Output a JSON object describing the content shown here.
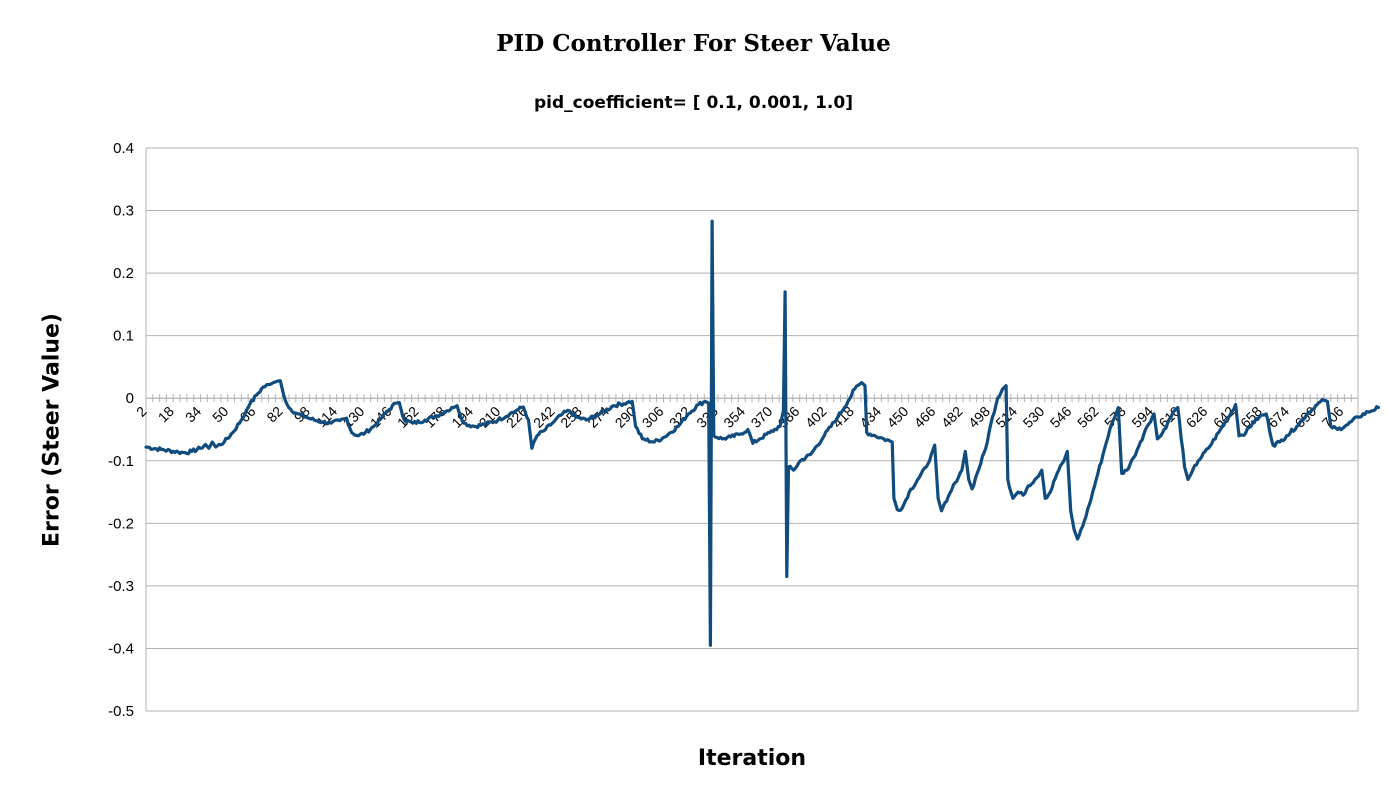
{
  "chart_data": {
    "type": "line",
    "title": "PID Controller For Steer Value",
    "subtitle": "pid_coefficient= [ 0.1, 0.001, 1.0]",
    "xlabel": "Iteration",
    "ylabel": "Error (Steer Value)",
    "ylim": [
      -0.5,
      0.4
    ],
    "yticks": [
      0.4,
      0.3,
      0.2,
      0.1,
      0,
      -0.1,
      -0.2,
      -0.3,
      -0.4,
      -0.5
    ],
    "xlim": [
      1,
      714
    ],
    "x_tick_labels": [
      2,
      18,
      34,
      50,
      66,
      82,
      98,
      114,
      130,
      146,
      162,
      178,
      194,
      210,
      226,
      242,
      258,
      274,
      290,
      306,
      322,
      338,
      354,
      370,
      386,
      402,
      418,
      434,
      450,
      466,
      482,
      498,
      514,
      530,
      546,
      562,
      578,
      594,
      610,
      626,
      642,
      658,
      674,
      690,
      706
    ],
    "grid": true,
    "line_color": "#114c7e",
    "series": [
      {
        "values_keypoints": [
          [
            1,
            -0.078
          ],
          [
            10,
            -0.082
          ],
          [
            20,
            -0.086
          ],
          [
            24,
            -0.087
          ],
          [
            28,
            -0.085
          ],
          [
            33,
            -0.08
          ],
          [
            36,
            -0.074
          ],
          [
            38,
            -0.08
          ],
          [
            40,
            -0.07
          ],
          [
            42,
            -0.078
          ],
          [
            47,
            -0.07
          ],
          [
            52,
            -0.055
          ],
          [
            57,
            -0.035
          ],
          [
            60,
            -0.02
          ],
          [
            62,
            -0.01
          ],
          [
            66,
            0.005
          ],
          [
            70,
            0.018
          ],
          [
            74,
            0.022
          ],
          [
            76,
            0.025
          ],
          [
            78,
            0.027
          ],
          [
            80,
            0.028
          ],
          [
            82,
            0.005
          ],
          [
            85,
            -0.015
          ],
          [
            90,
            -0.025
          ],
          [
            95,
            -0.03
          ],
          [
            100,
            -0.035
          ],
          [
            105,
            -0.038
          ],
          [
            110,
            -0.04
          ],
          [
            115,
            -0.036
          ],
          [
            119,
            -0.032
          ],
          [
            122,
            -0.055
          ],
          [
            126,
            -0.06
          ],
          [
            130,
            -0.055
          ],
          [
            135,
            -0.045
          ],
          [
            140,
            -0.03
          ],
          [
            144,
            -0.018
          ],
          [
            148,
            -0.008
          ],
          [
            150,
            -0.007
          ],
          [
            153,
            -0.035
          ],
          [
            158,
            -0.04
          ],
          [
            165,
            -0.035
          ],
          [
            172,
            -0.028
          ],
          [
            178,
            -0.02
          ],
          [
            182,
            -0.015
          ],
          [
            184,
            -0.012
          ],
          [
            188,
            -0.04
          ],
          [
            194,
            -0.045
          ],
          [
            200,
            -0.042
          ],
          [
            208,
            -0.035
          ],
          [
            215,
            -0.025
          ],
          [
            220,
            -0.018
          ],
          [
            223,
            -0.014
          ],
          [
            226,
            -0.035
          ],
          [
            228,
            -0.08
          ],
          [
            231,
            -0.06
          ],
          [
            236,
            -0.05
          ],
          [
            240,
            -0.04
          ],
          [
            246,
            -0.025
          ],
          [
            250,
            -0.02
          ],
          [
            254,
            -0.03
          ],
          [
            260,
            -0.035
          ],
          [
            268,
            -0.025
          ],
          [
            276,
            -0.012
          ],
          [
            284,
            -0.007
          ],
          [
            287,
            -0.005
          ],
          [
            289,
            -0.045
          ],
          [
            293,
            -0.065
          ],
          [
            300,
            -0.07
          ],
          [
            306,
            -0.062
          ],
          [
            314,
            -0.045
          ],
          [
            320,
            -0.025
          ],
          [
            326,
            -0.01
          ],
          [
            330,
            -0.005
          ],
          [
            332,
            -0.008
          ],
          [
            333,
            -0.395
          ],
          [
            334,
            0.283
          ],
          [
            335,
            -0.06
          ],
          [
            340,
            -0.065
          ],
          [
            345,
            -0.062
          ],
          [
            350,
            -0.058
          ],
          [
            355,
            -0.05
          ],
          [
            358,
            -0.072
          ],
          [
            362,
            -0.065
          ],
          [
            368,
            -0.055
          ],
          [
            374,
            -0.045
          ],
          [
            376,
            -0.02
          ],
          [
            377,
            0.17
          ],
          [
            378,
            -0.285
          ],
          [
            379,
            -0.11
          ],
          [
            382,
            -0.115
          ],
          [
            386,
            -0.1
          ],
          [
            392,
            -0.09
          ],
          [
            400,
            -0.06
          ],
          [
            408,
            -0.03
          ],
          [
            414,
            -0.005
          ],
          [
            418,
            0.015
          ],
          [
            422,
            0.025
          ],
          [
            424,
            0.02
          ],
          [
            425,
            -0.055
          ],
          [
            430,
            -0.06
          ],
          [
            435,
            -0.065
          ],
          [
            440,
            -0.07
          ],
          [
            441,
            -0.16
          ],
          [
            443,
            -0.178
          ],
          [
            446,
            -0.175
          ],
          [
            450,
            -0.15
          ],
          [
            455,
            -0.13
          ],
          [
            460,
            -0.11
          ],
          [
            463,
            -0.09
          ],
          [
            465,
            -0.075
          ],
          [
            467,
            -0.16
          ],
          [
            469,
            -0.18
          ],
          [
            472,
            -0.165
          ],
          [
            477,
            -0.135
          ],
          [
            481,
            -0.115
          ],
          [
            483,
            -0.085
          ],
          [
            485,
            -0.13
          ],
          [
            487,
            -0.145
          ],
          [
            490,
            -0.12
          ],
          [
            495,
            -0.08
          ],
          [
            499,
            -0.03
          ],
          [
            502,
            0.0
          ],
          [
            505,
            0.015
          ],
          [
            507,
            0.02
          ],
          [
            508,
            -0.13
          ],
          [
            511,
            -0.16
          ],
          [
            514,
            -0.15
          ],
          [
            517,
            -0.155
          ],
          [
            520,
            -0.14
          ],
          [
            524,
            -0.13
          ],
          [
            528,
            -0.115
          ],
          [
            530,
            -0.16
          ],
          [
            533,
            -0.15
          ],
          [
            537,
            -0.12
          ],
          [
            541,
            -0.1
          ],
          [
            543,
            -0.085
          ],
          [
            545,
            -0.18
          ],
          [
            547,
            -0.21
          ],
          [
            549,
            -0.225
          ],
          [
            552,
            -0.205
          ],
          [
            556,
            -0.17
          ],
          [
            560,
            -0.13
          ],
          [
            564,
            -0.09
          ],
          [
            568,
            -0.05
          ],
          [
            571,
            -0.03
          ],
          [
            573,
            -0.015
          ],
          [
            575,
            -0.12
          ],
          [
            578,
            -0.115
          ],
          [
            582,
            -0.095
          ],
          [
            586,
            -0.07
          ],
          [
            590,
            -0.045
          ],
          [
            594,
            -0.025
          ],
          [
            596,
            -0.065
          ],
          [
            598,
            -0.06
          ],
          [
            602,
            -0.04
          ],
          [
            606,
            -0.02
          ],
          [
            608,
            -0.015
          ],
          [
            612,
            -0.11
          ],
          [
            614,
            -0.13
          ],
          [
            616,
            -0.12
          ],
          [
            620,
            -0.1
          ],
          [
            626,
            -0.08
          ],
          [
            632,
            -0.055
          ],
          [
            638,
            -0.03
          ],
          [
            642,
            -0.01
          ],
          [
            644,
            -0.06
          ],
          [
            648,
            -0.055
          ],
          [
            652,
            -0.04
          ],
          [
            656,
            -0.03
          ],
          [
            660,
            -0.025
          ],
          [
            664,
            -0.075
          ],
          [
            668,
            -0.07
          ],
          [
            672,
            -0.06
          ],
          [
            678,
            -0.045
          ],
          [
            684,
            -0.025
          ],
          [
            690,
            -0.01
          ],
          [
            694,
            -0.003
          ],
          [
            696,
            -0.005
          ],
          [
            698,
            -0.045
          ],
          [
            702,
            -0.05
          ],
          [
            708,
            -0.042
          ],
          [
            714,
            -0.03
          ],
          [
            720,
            -0.022
          ],
          [
            726,
            -0.015
          ]
        ]
      }
    ]
  }
}
